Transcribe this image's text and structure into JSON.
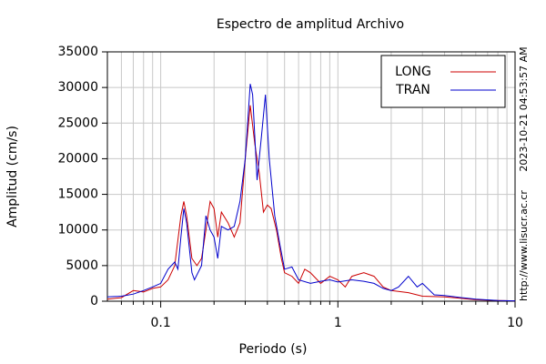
{
  "chart_data": {
    "type": "line",
    "title": "Espectro de amplitud Archivo",
    "x_label": "Periodo (s)",
    "y_label": "Amplitud (cm/s)",
    "annotations": [
      "2023-10-21 04:53:57 AM",
      "http://www.lisucr.ac.cr"
    ],
    "xscale": "log",
    "xlim": [
      0.05,
      10
    ],
    "ylim": [
      0,
      35000
    ],
    "xticks": [
      0.1,
      1,
      10
    ],
    "xminorticks": [
      0.06,
      0.07,
      0.08,
      0.09,
      0.2,
      0.3,
      0.4,
      0.5,
      0.6,
      0.7,
      0.8,
      0.9,
      2,
      3,
      4,
      5,
      6,
      7,
      8,
      9
    ],
    "yticks": [
      0,
      5000,
      10000,
      15000,
      20000,
      25000,
      30000,
      35000
    ],
    "grid": true,
    "legend": "upper right",
    "series": [
      {
        "name": "LONG",
        "color": "#cc0000",
        "x": [
          0.05,
          0.06,
          0.07,
          0.08,
          0.09,
          0.1,
          0.11,
          0.12,
          0.13,
          0.135,
          0.14,
          0.15,
          0.16,
          0.17,
          0.18,
          0.19,
          0.2,
          0.21,
          0.22,
          0.24,
          0.26,
          0.28,
          0.3,
          0.32,
          0.34,
          0.36,
          0.38,
          0.4,
          0.42,
          0.45,
          0.48,
          0.5,
          0.55,
          0.6,
          0.65,
          0.7,
          0.8,
          0.9,
          1.0,
          1.1,
          1.2,
          1.4,
          1.6,
          1.8,
          2.0,
          2.5,
          3.0,
          4.0,
          5.0,
          6.0,
          8.0,
          10
        ],
        "values": [
          300,
          500,
          1500,
          1300,
          1800,
          2000,
          3000,
          5000,
          12000,
          14000,
          12000,
          6000,
          5000,
          6000,
          10000,
          14000,
          13000,
          9000,
          12500,
          11000,
          9000,
          11000,
          20000,
          27500,
          22000,
          18000,
          12500,
          13500,
          13000,
          10000,
          6000,
          4000,
          3500,
          2500,
          4500,
          4000,
          2500,
          3500,
          3000,
          2000,
          3500,
          4000,
          3500,
          2000,
          1500,
          1200,
          700,
          600,
          400,
          200,
          100,
          50
        ]
      },
      {
        "name": "TRAN",
        "color": "#0000cc",
        "x": [
          0.05,
          0.06,
          0.07,
          0.08,
          0.09,
          0.1,
          0.11,
          0.12,
          0.125,
          0.13,
          0.135,
          0.14,
          0.15,
          0.155,
          0.17,
          0.18,
          0.19,
          0.2,
          0.21,
          0.22,
          0.24,
          0.26,
          0.28,
          0.3,
          0.32,
          0.33,
          0.35,
          0.37,
          0.39,
          0.41,
          0.44,
          0.47,
          0.5,
          0.55,
          0.6,
          0.7,
          0.8,
          0.9,
          1.0,
          1.2,
          1.4,
          1.6,
          1.8,
          2.0,
          2.2,
          2.5,
          2.8,
          3.0,
          3.5,
          4.0,
          5.0,
          6.0,
          8.0,
          10
        ],
        "values": [
          600,
          700,
          1000,
          1500,
          2000,
          2500,
          4500,
          5500,
          4500,
          9000,
          13000,
          11000,
          4000,
          3000,
          5000,
          12000,
          10000,
          9000,
          6000,
          10500,
          10000,
          10500,
          14000,
          20000,
          30500,
          29000,
          17000,
          23000,
          29000,
          20000,
          12000,
          8000,
          4500,
          4800,
          3000,
          2500,
          2800,
          3000,
          2700,
          3000,
          2800,
          2500,
          1800,
          1500,
          2000,
          3500,
          2000,
          2500,
          900,
          800,
          500,
          300,
          100,
          50
        ]
      }
    ]
  }
}
